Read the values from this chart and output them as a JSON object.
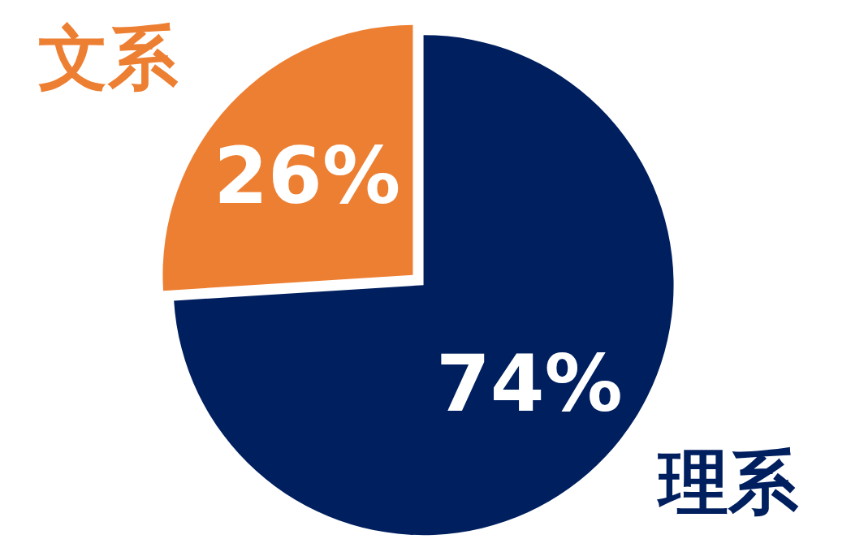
{
  "chart_data": {
    "type": "pie",
    "categories": [
      "理系",
      "文系"
    ],
    "values": [
      74,
      26
    ],
    "colors": [
      "#001f5f",
      "#ed7f33"
    ],
    "value_labels": [
      "74%",
      "26%"
    ]
  }
}
